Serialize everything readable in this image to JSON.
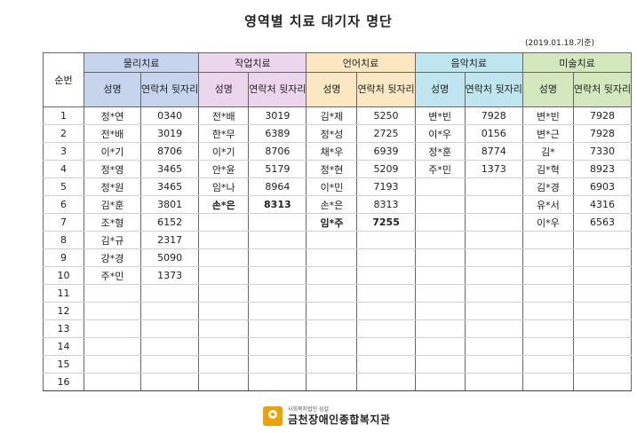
{
  "document": {
    "title": "영역별 치료 대기자 명단",
    "date": "(2019.01.18.기준)"
  },
  "headers": {
    "seq": "순번",
    "groups": [
      "물리치료",
      "작업치료",
      "언어치료",
      "음악치료",
      "미술치료"
    ],
    "name_label": "성명",
    "contact_label": "연락처 뒷자리"
  },
  "rows": [
    {
      "seq": "1",
      "cells": [
        [
          "정*연",
          "0340"
        ],
        [
          "전*배",
          "3019"
        ],
        [
          "김*제",
          "5250"
        ],
        [
          "변*빈",
          "7928"
        ],
        [
          "변*빈",
          "7928"
        ]
      ]
    },
    {
      "seq": "2",
      "cells": [
        [
          "전*배",
          "3019"
        ],
        [
          "한*무",
          "6389"
        ],
        [
          "정*성",
          "2725"
        ],
        [
          "이*우",
          "0156"
        ],
        [
          "변*근",
          "7928"
        ]
      ]
    },
    {
      "seq": "3",
      "cells": [
        [
          "이*기",
          "8706"
        ],
        [
          "이*기",
          "8706"
        ],
        [
          "채*우",
          "6939"
        ],
        [
          "정*훈",
          "8774"
        ],
        [
          "김*",
          "7330"
        ]
      ]
    },
    {
      "seq": "4",
      "cells": [
        [
          "정*영",
          "3465"
        ],
        [
          "안*윤",
          "5179"
        ],
        [
          "정*현",
          "5209"
        ],
        [
          "주*민",
          "1373"
        ],
        [
          "김*혁",
          "8923"
        ]
      ]
    },
    {
      "seq": "5",
      "cells": [
        [
          "정*원",
          "3465"
        ],
        [
          "임*나",
          "8964"
        ],
        [
          "이*민",
          "7193"
        ],
        [
          "",
          ""
        ],
        [
          "김*경",
          "6903"
        ]
      ]
    },
    {
      "seq": "6",
      "cells": [
        [
          "김*훈",
          "3801"
        ],
        [
          "손*은",
          "8313"
        ],
        [
          "손*은",
          "8313"
        ],
        [
          "",
          ""
        ],
        [
          "유*서",
          "4316"
        ]
      ]
    },
    {
      "seq": "7",
      "cells": [
        [
          "조*형",
          "6152"
        ],
        [
          "",
          ""
        ],
        [
          "임*주",
          "7255"
        ],
        [
          "",
          ""
        ],
        [
          "이*우",
          "6563"
        ]
      ]
    },
    {
      "seq": "8",
      "cells": [
        [
          "김*규",
          "2317"
        ],
        [
          "",
          ""
        ],
        [
          "",
          ""
        ],
        [
          "",
          ""
        ],
        [
          "",
          ""
        ]
      ]
    },
    {
      "seq": "9",
      "cells": [
        [
          "강*경",
          "5090"
        ],
        [
          "",
          ""
        ],
        [
          "",
          ""
        ],
        [
          "",
          ""
        ],
        [
          "",
          ""
        ]
      ]
    },
    {
      "seq": "10",
      "cells": [
        [
          "주*민",
          "1373"
        ],
        [
          "",
          ""
        ],
        [
          "",
          ""
        ],
        [
          "",
          ""
        ],
        [
          "",
          ""
        ]
      ]
    },
    {
      "seq": "11",
      "cells": [
        [
          "",
          ""
        ],
        [
          "",
          ""
        ],
        [
          "",
          ""
        ],
        [
          "",
          ""
        ],
        [
          "",
          ""
        ]
      ]
    },
    {
      "seq": "12",
      "cells": [
        [
          "",
          ""
        ],
        [
          "",
          ""
        ],
        [
          "",
          ""
        ],
        [
          "",
          ""
        ],
        [
          "",
          ""
        ]
      ]
    },
    {
      "seq": "13",
      "cells": [
        [
          "",
          ""
        ],
        [
          "",
          ""
        ],
        [
          "",
          ""
        ],
        [
          "",
          ""
        ],
        [
          "",
          ""
        ]
      ]
    },
    {
      "seq": "14",
      "cells": [
        [
          "",
          ""
        ],
        [
          "",
          ""
        ],
        [
          "",
          ""
        ],
        [
          "",
          ""
        ],
        [
          "",
          ""
        ]
      ]
    },
    {
      "seq": "15",
      "cells": [
        [
          "",
          ""
        ],
        [
          "",
          ""
        ],
        [
          "",
          ""
        ],
        [
          "",
          ""
        ],
        [
          "",
          ""
        ]
      ]
    },
    {
      "seq": "16",
      "cells": [
        [
          "",
          ""
        ],
        [
          "",
          ""
        ],
        [
          "",
          ""
        ],
        [
          "",
          ""
        ],
        [
          "",
          ""
        ]
      ]
    }
  ],
  "bold_cells": [
    "4-3",
    "5-1",
    "6-2",
    "8-3"
  ],
  "footer": {
    "org_small": "사회복지법인 삼걸",
    "org_name": "금천장애인종합복지관"
  },
  "colors": {
    "physical": "#c6d4ee",
    "occupational": "#ecd6ee",
    "language": "#fbe7c2",
    "music": "#bfe6ee",
    "art": "#d4e8be"
  }
}
